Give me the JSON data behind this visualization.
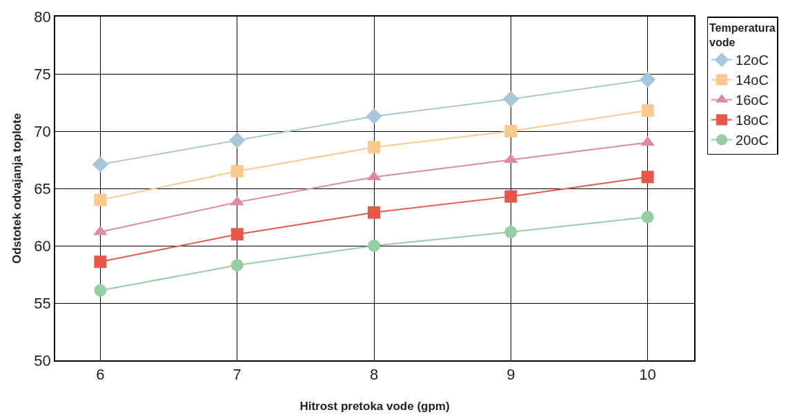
{
  "chart_data": {
    "type": "line",
    "xlabel": "Hitrost pretoka vode (gpm)",
    "ylabel": "Odstotek odvajanja toplote",
    "legend_title": "Temperatura vode",
    "x": [
      6,
      7,
      8,
      9,
      10
    ],
    "series": [
      {
        "name": "12oC",
        "color": "#a9c6d8",
        "marker": "diamond",
        "values": [
          67.1,
          69.2,
          71.3,
          72.8,
          74.5
        ]
      },
      {
        "name": "14oC",
        "color": "#fbc98e",
        "marker": "square",
        "values": [
          64.0,
          66.5,
          68.6,
          70.0,
          71.8
        ]
      },
      {
        "name": "16oC",
        "color": "#de8aa0",
        "marker": "triangle",
        "values": [
          61.2,
          63.8,
          66.0,
          67.5,
          69.0
        ]
      },
      {
        "name": "18oC",
        "color": "#e8574a",
        "marker": "square",
        "values": [
          58.6,
          61.0,
          62.9,
          64.3,
          66.0
        ]
      },
      {
        "name": "20oC",
        "color": "#97cda4",
        "marker": "circle",
        "values": [
          56.1,
          58.3,
          60.0,
          61.2,
          62.5
        ]
      }
    ],
    "xlim": [
      5.67,
      10.34
    ],
    "xticks": [
      6,
      7,
      8,
      9,
      10
    ],
    "ylim": [
      50,
      80
    ],
    "yticks": [
      50,
      55,
      60,
      65,
      70,
      75,
      80
    ],
    "grid": true,
    "legend": "right",
    "line_style": "solid"
  }
}
